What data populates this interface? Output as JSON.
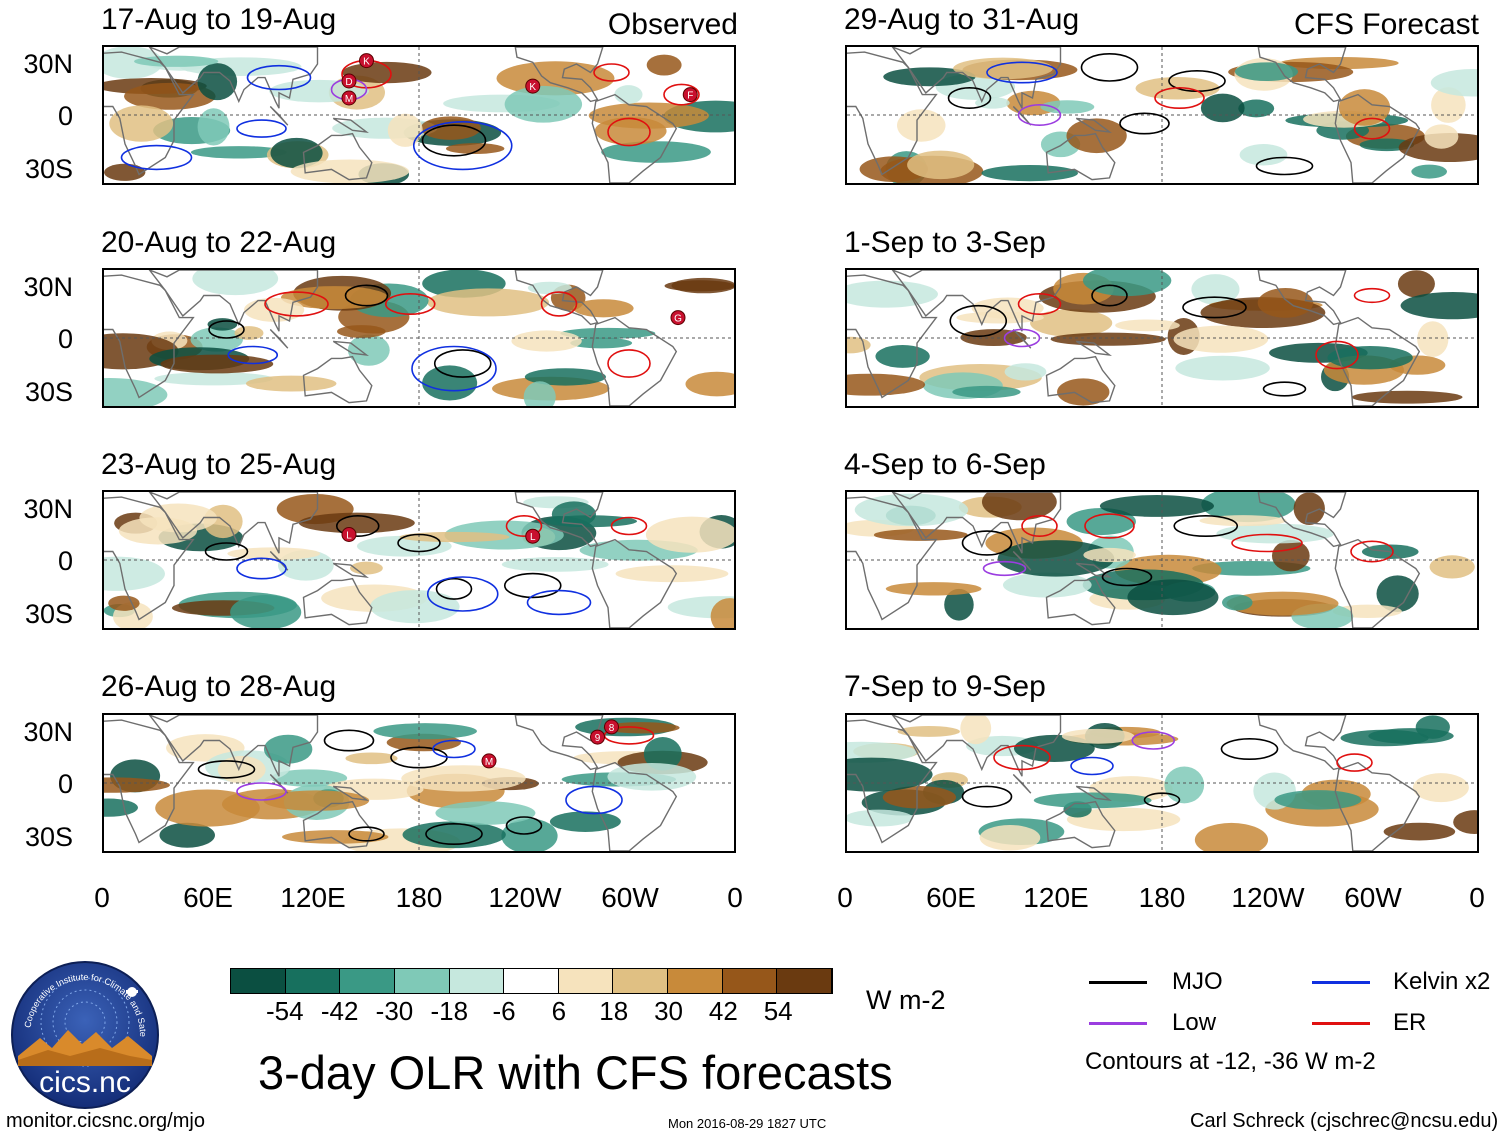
{
  "chart_data": {
    "type": "heatmap",
    "title": "3-day OLR with CFS forecasts",
    "units": "W m-2",
    "observed_label": "Observed",
    "forecast_label": "CFS Forecast",
    "lat_ticks": [
      "30N",
      "0",
      "30S"
    ],
    "lon_ticks": [
      "0",
      "60E",
      "120E",
      "180",
      "120W",
      "60W",
      "0"
    ],
    "lat_range": [
      -40,
      40
    ],
    "lon_range": [
      0,
      360
    ],
    "panels": [
      {
        "column": "observed",
        "period": "17-Aug to 19-Aug",
        "storms": [
          "D",
          "K",
          "M",
          "K",
          "F"
        ]
      },
      {
        "column": "observed",
        "period": "20-Aug to 22-Aug",
        "storms": [
          "G"
        ]
      },
      {
        "column": "observed",
        "period": "23-Aug to 25-Aug",
        "storms": [
          "L",
          "L"
        ]
      },
      {
        "column": "observed",
        "period": "26-Aug to 28-Aug",
        "storms": [
          "M",
          "9",
          "8"
        ]
      },
      {
        "column": "forecast",
        "period": "29-Aug to 31-Aug",
        "storms": []
      },
      {
        "column": "forecast",
        "period": "1-Sep to 3-Sep",
        "storms": []
      },
      {
        "column": "forecast",
        "period": "4-Sep to 6-Sep",
        "storms": []
      },
      {
        "column": "forecast",
        "period": "7-Sep to 9-Sep",
        "storms": []
      }
    ],
    "colorbar": {
      "ticks": [
        "-54",
        "-42",
        "-30",
        "-18",
        "-6",
        "6",
        "18",
        "30",
        "42",
        "54"
      ],
      "colors": [
        "#0b4f41",
        "#17705e",
        "#3a9985",
        "#7fc9b7",
        "#c6e8de",
        "#ffffff",
        "#f6e3bd",
        "#e0c083",
        "#c88a3a",
        "#96571a",
        "#6a3a10"
      ]
    },
    "legend": [
      {
        "label": "MJO",
        "color": "#000000"
      },
      {
        "label": "Kelvin x2",
        "color": "#1030e0"
      },
      {
        "label": "Low",
        "color": "#9b3de0"
      },
      {
        "label": "ER",
        "color": "#e01010"
      }
    ],
    "contour_note": "Contours at -12, -36 W m-2"
  },
  "logo": {
    "text": "cics.nc",
    "ring_text": "Cooperative Institute for Climate and Satellites"
  },
  "footer": {
    "url": "monitor.cicsnc.org/mjo",
    "timestamp": "Mon 2016-08-29 1827 UTC",
    "author": "Carl Schreck (cjschrec@ncsu.edu)"
  }
}
